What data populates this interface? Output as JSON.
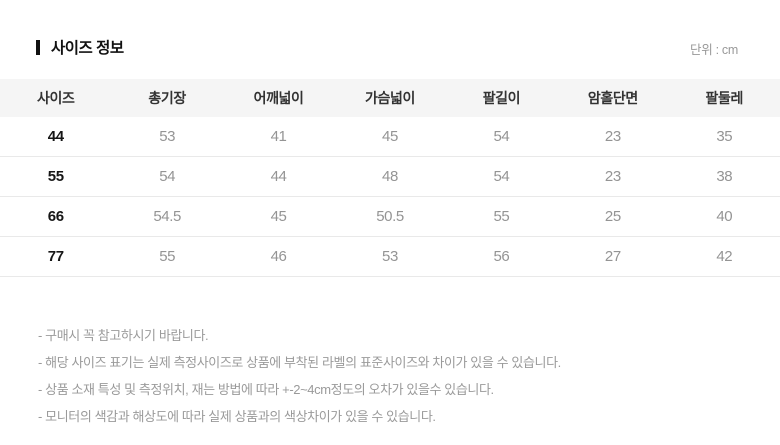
{
  "page": {
    "title": "사이즈 정보",
    "unit_label": "단위 : cm"
  },
  "size_table": {
    "headers": [
      "사이즈",
      "총기장",
      "어깨넓이",
      "가슴넓이",
      "팔길이",
      "암홀단면",
      "팔둘레"
    ],
    "rows": [
      {
        "size": "44",
        "values": [
          "53",
          "41",
          "45",
          "54",
          "23",
          "35"
        ]
      },
      {
        "size": "55",
        "values": [
          "54",
          "44",
          "48",
          "54",
          "23",
          "38"
        ]
      },
      {
        "size": "66",
        "values": [
          "54.5",
          "45",
          "50.5",
          "55",
          "25",
          "40"
        ]
      },
      {
        "size": "77",
        "values": [
          "55",
          "46",
          "53",
          "56",
          "27",
          "42"
        ]
      }
    ]
  },
  "notes": [
    "- 구매시 꼭 참고하시기 바랍니다.",
    "- 해당 사이즈 표기는 실제 측정사이즈로 상품에 부착된 라벨의 표준사이즈와 차이가 있을 수 있습니다.",
    "- 상품 소재 특성 및 측정위치, 재는 방법에 따라 +-2~4cm정도의 오차가 있을수 있습니다.",
    "- 모니터의 색감과 해상도에 따라 실제 상품과의 색상차이가 있을 수 있습니다."
  ],
  "colors": {
    "header_bg": "#f5f5f5",
    "divider": "#e9e9e9",
    "title_text": "#111111",
    "size_text": "#161616",
    "value_text": "#949494",
    "note_text": "#9a9a9a"
  }
}
